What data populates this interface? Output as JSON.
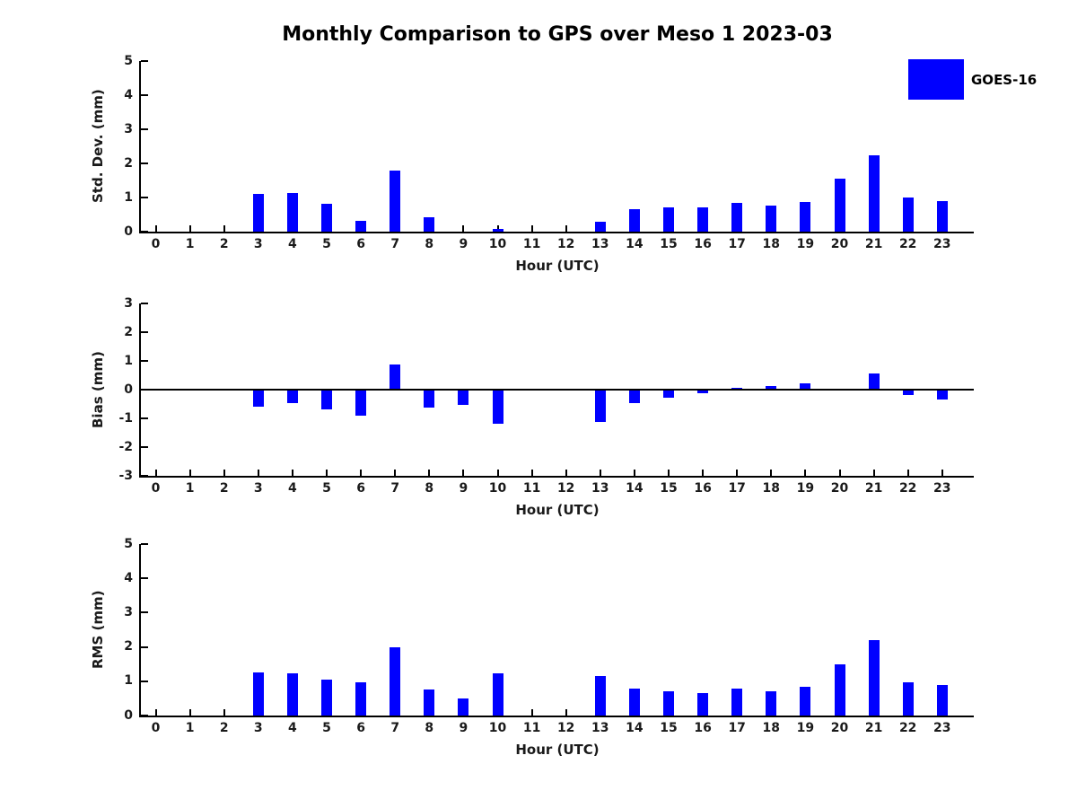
{
  "title": "Monthly Comparison to GPS over Meso 1 2023-03",
  "legend": {
    "label": "GOES-16",
    "color": "#0000ff",
    "position": "top-right"
  },
  "chart_data": [
    {
      "type": "bar",
      "name": "std-dev",
      "ylabel": "Std. Dev. (mm)",
      "xlabel": "Hour (UTC)",
      "ylim": [
        0,
        5
      ],
      "yticks": [
        0,
        1,
        2,
        3,
        4,
        5
      ],
      "grid": false,
      "categories": [
        "0",
        "1",
        "2",
        "3",
        "4",
        "5",
        "6",
        "7",
        "8",
        "9",
        "10",
        "11",
        "12",
        "13",
        "14",
        "15",
        "16",
        "17",
        "18",
        "19",
        "20",
        "21",
        "22",
        "23"
      ],
      "series": [
        {
          "name": "GOES-16",
          "color": "#0000ff",
          "values": [
            0,
            0,
            0,
            1.11,
            1.14,
            0.82,
            0.31,
            1.8,
            0.41,
            0,
            0.08,
            0,
            0,
            0.29,
            0.67,
            0.72,
            0.7,
            0.84,
            0.76,
            0.87,
            1.55,
            2.24,
            1.0,
            0.9
          ]
        }
      ]
    },
    {
      "type": "bar",
      "name": "bias",
      "ylabel": "Bias (mm)",
      "xlabel": "Hour (UTC)",
      "ylim": [
        -3,
        3
      ],
      "yticks": [
        -3,
        -2,
        -1,
        0,
        1,
        2,
        3
      ],
      "zero_line": true,
      "grid": false,
      "categories": [
        "0",
        "1",
        "2",
        "3",
        "4",
        "5",
        "6",
        "7",
        "8",
        "9",
        "10",
        "11",
        "12",
        "13",
        "14",
        "15",
        "16",
        "17",
        "18",
        "19",
        "20",
        "21",
        "22",
        "23"
      ],
      "series": [
        {
          "name": "GOES-16",
          "color": "#0000ff",
          "values": [
            0,
            0,
            0,
            -0.6,
            -0.47,
            -0.68,
            -0.92,
            0.89,
            -0.63,
            -0.52,
            -1.2,
            0,
            0,
            -1.11,
            -0.47,
            -0.28,
            -0.13,
            0.06,
            0.14,
            0.22,
            0,
            0.57,
            -0.2,
            -0.34
          ]
        }
      ]
    },
    {
      "type": "bar",
      "name": "rms",
      "ylabel": "RMS (mm)",
      "xlabel": "Hour (UTC)",
      "ylim": [
        0,
        5
      ],
      "yticks": [
        0,
        1,
        2,
        3,
        4,
        5
      ],
      "grid": false,
      "categories": [
        "0",
        "1",
        "2",
        "3",
        "4",
        "5",
        "6",
        "7",
        "8",
        "9",
        "10",
        "11",
        "12",
        "13",
        "14",
        "15",
        "16",
        "17",
        "18",
        "19",
        "20",
        "21",
        "22",
        "23"
      ],
      "series": [
        {
          "name": "GOES-16",
          "color": "#0000ff",
          "values": [
            0,
            0,
            0,
            1.26,
            1.23,
            1.05,
            0.98,
            1.98,
            0.77,
            0.51,
            1.22,
            0,
            0,
            1.14,
            0.78,
            0.7,
            0.65,
            0.78,
            0.7,
            0.84,
            1.48,
            2.21,
            0.96,
            0.9
          ]
        }
      ]
    }
  ]
}
